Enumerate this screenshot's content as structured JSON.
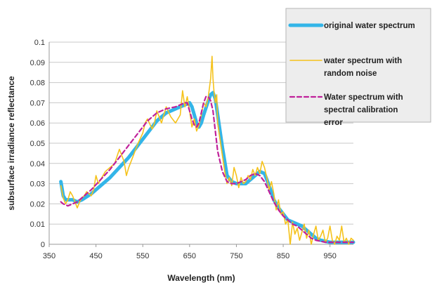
{
  "chart_data": {
    "type": "line",
    "title": "",
    "xlabel": "Wavelength (nm)",
    "ylabel": "subsurface irradiance reflectance",
    "xlim": [
      350,
      1000
    ],
    "ylim": [
      0,
      0.1
    ],
    "x_ticks": [
      "350",
      "450",
      "550",
      "650",
      "750",
      "850",
      "950"
    ],
    "x_tick_values": [
      350,
      450,
      550,
      650,
      750,
      850,
      950
    ],
    "y_ticks": [
      "0",
      "0.01",
      "0.02",
      "0.03",
      "0.04",
      "0.05",
      "0.06",
      "0.07",
      "0.08",
      "0.09",
      "0.1"
    ],
    "y_tick_values": [
      0,
      0.01,
      0.02,
      0.03,
      0.04,
      0.05,
      0.06,
      0.07,
      0.08,
      0.09,
      0.1
    ],
    "grid": "horizontal",
    "legend_position": "right",
    "series": [
      {
        "name": "original water spectrum",
        "color": "#33b5e8",
        "style": "solid-thick",
        "x": [
          375,
          380,
          385,
          390,
          400,
          410,
          420,
          440,
          460,
          480,
          500,
          520,
          540,
          560,
          580,
          600,
          620,
          640,
          650,
          655,
          660,
          665,
          670,
          675,
          680,
          690,
          695,
          700,
          705,
          710,
          720,
          730,
          740,
          750,
          760,
          770,
          780,
          790,
          800,
          810,
          820,
          830,
          840,
          850,
          860,
          870,
          880,
          890,
          900,
          910,
          920,
          930,
          940,
          950,
          960,
          980,
          1000
        ],
        "y": [
          0.031,
          0.024,
          0.022,
          0.022,
          0.022,
          0.021,
          0.022,
          0.025,
          0.029,
          0.033,
          0.038,
          0.043,
          0.049,
          0.055,
          0.061,
          0.065,
          0.067,
          0.069,
          0.07,
          0.068,
          0.064,
          0.06,
          0.058,
          0.06,
          0.064,
          0.071,
          0.074,
          0.075,
          0.072,
          0.064,
          0.048,
          0.034,
          0.031,
          0.03,
          0.03,
          0.03,
          0.032,
          0.034,
          0.036,
          0.035,
          0.029,
          0.022,
          0.018,
          0.015,
          0.012,
          0.011,
          0.01,
          0.009,
          0.007,
          0.005,
          0.003,
          0.002,
          0.0015,
          0.001,
          0.001,
          0.001,
          0.001
        ]
      },
      {
        "name": "water spectrum with random noise",
        "color": "#f5c21b",
        "style": "solid-thin",
        "x": [
          375,
          380,
          385,
          390,
          395,
          400,
          405,
          410,
          415,
          420,
          425,
          430,
          440,
          445,
          450,
          455,
          460,
          470,
          480,
          490,
          500,
          510,
          515,
          520,
          530,
          540,
          550,
          555,
          560,
          570,
          575,
          580,
          590,
          600,
          610,
          620,
          630,
          635,
          640,
          645,
          650,
          655,
          660,
          665,
          670,
          675,
          680,
          685,
          690,
          695,
          698,
          700,
          702,
          705,
          708,
          710,
          715,
          720,
          725,
          730,
          735,
          740,
          745,
          750,
          755,
          760,
          765,
          770,
          775,
          780,
          785,
          790,
          795,
          800,
          805,
          810,
          815,
          820,
          825,
          830,
          835,
          840,
          845,
          850,
          855,
          860,
          865,
          870,
          875,
          880,
          885,
          890,
          895,
          900,
          905,
          910,
          915,
          920,
          925,
          930,
          935,
          940,
          945,
          950,
          955,
          960,
          965,
          970,
          975,
          980,
          985,
          990,
          995,
          1000
        ],
        "y": [
          0.029,
          0.023,
          0.02,
          0.022,
          0.026,
          0.024,
          0.021,
          0.018,
          0.021,
          0.023,
          0.024,
          0.026,
          0.024,
          0.027,
          0.034,
          0.03,
          0.032,
          0.036,
          0.038,
          0.04,
          0.047,
          0.041,
          0.034,
          0.038,
          0.044,
          0.05,
          0.055,
          0.06,
          0.062,
          0.057,
          0.06,
          0.066,
          0.06,
          0.068,
          0.063,
          0.06,
          0.064,
          0.076,
          0.068,
          0.073,
          0.066,
          0.058,
          0.062,
          0.056,
          0.059,
          0.064,
          0.07,
          0.068,
          0.073,
          0.082,
          0.093,
          0.082,
          0.076,
          0.07,
          0.074,
          0.06,
          0.052,
          0.044,
          0.036,
          0.03,
          0.033,
          0.029,
          0.038,
          0.034,
          0.028,
          0.033,
          0.03,
          0.031,
          0.034,
          0.032,
          0.037,
          0.034,
          0.038,
          0.035,
          0.041,
          0.038,
          0.033,
          0.027,
          0.031,
          0.025,
          0.017,
          0.022,
          0.015,
          0.016,
          0.01,
          0.012,
          0.0,
          0.011,
          0.005,
          0.008,
          0.002,
          0.006,
          0.01,
          0.003,
          0.007,
          0.0,
          0.005,
          0.009,
          0.002,
          0.004,
          0.007,
          0.001,
          0.003,
          0.009,
          0.002,
          0.0,
          0.004,
          0.002,
          0.009,
          0.001,
          0.003,
          0.0,
          0.003,
          0.002
        ]
      },
      {
        "name": "Water spectrum with spectral calibration error",
        "color": "#c0209a",
        "style": "dashed",
        "x": [
          375,
          380,
          390,
          400,
          410,
          420,
          440,
          460,
          480,
          500,
          520,
          540,
          560,
          580,
          600,
          620,
          640,
          645,
          650,
          655,
          660,
          665,
          670,
          675,
          680,
          685,
          690,
          695,
          700,
          705,
          710,
          720,
          730,
          740,
          750,
          760,
          770,
          780,
          790,
          800,
          810,
          820,
          830,
          840,
          850,
          860,
          870,
          880,
          890,
          900,
          910,
          920,
          930,
          940,
          950,
          960,
          980,
          1000
        ],
        "y": [
          0.021,
          0.02,
          0.019,
          0.02,
          0.021,
          0.023,
          0.027,
          0.032,
          0.037,
          0.043,
          0.049,
          0.055,
          0.061,
          0.065,
          0.067,
          0.068,
          0.07,
          0.07,
          0.066,
          0.062,
          0.059,
          0.058,
          0.06,
          0.065,
          0.07,
          0.073,
          0.073,
          0.071,
          0.066,
          0.056,
          0.046,
          0.036,
          0.031,
          0.03,
          0.03,
          0.031,
          0.032,
          0.034,
          0.035,
          0.034,
          0.031,
          0.026,
          0.021,
          0.017,
          0.014,
          0.012,
          0.01,
          0.009,
          0.007,
          0.005,
          0.003,
          0.002,
          0.0015,
          0.001,
          0.001,
          0.001,
          0.001,
          0.001
        ]
      }
    ]
  }
}
